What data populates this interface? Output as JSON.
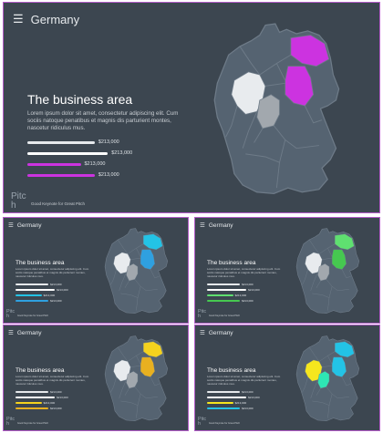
{
  "colors": {
    "background": "#3c4650",
    "frame": "#b35cc8",
    "map_base": "#556371",
    "map_border": "#6e7b88",
    "region_white": "#e8ebee",
    "region_gray": "#a2a8ae"
  },
  "slides": [
    {
      "header_title": "Germany",
      "menu_icon": "☰",
      "section_title": "The business area",
      "body": "Lorem ipsum dolor sit amet, consectetur adipiscing elit. Cum sociis natoque penatibus et magnis dis parturient montes, nascetur ridiculus mus.",
      "accent": "#cc33e0",
      "brand": "Pitc h",
      "tagline": "Good Keynote for Great Pitch",
      "bars": [
        {
          "value": "$213,000",
          "color": "#e6e9ec",
          "length": 0.82
        },
        {
          "value": "$213,000",
          "color": "#ffffff",
          "length": 0.98
        },
        {
          "value": "$213,000",
          "color": "#cc33e0",
          "length": 0.65
        },
        {
          "value": "$213,000",
          "color": "#cc33e0",
          "length": 0.82
        }
      ]
    },
    {
      "header_title": "Germany",
      "menu_icon": "☰",
      "section_title": "The business area",
      "body": "Lorem ipsum dolor sit amet, consectetur adipiscing elit. Cum sociis natoque penatibus et magnis dis parturient montes, nascetur ridiculus mus.",
      "accent": "#23c3e6",
      "brand": "Pitc h",
      "tagline": "Good Keynote for Great Pitch",
      "bars": [
        {
          "value": "$213,000",
          "color": "#e6e9ec",
          "length": 0.82
        },
        {
          "value": "$213,000",
          "color": "#ffffff",
          "length": 0.98
        },
        {
          "value": "$213,000",
          "color": "#23c3e6",
          "length": 0.65
        },
        {
          "value": "$213,000",
          "color": "#2fa0e0",
          "length": 0.82
        }
      ]
    },
    {
      "header_title": "Germany",
      "menu_icon": "☰",
      "section_title": "The business area",
      "body": "Lorem ipsum dolor sit amet, consectetur adipiscing elit. Cum sociis natoque penatibus et magnis dis parturient montes, nascetur ridiculus mus.",
      "accent": "#5fe070",
      "brand": "Pitc h",
      "tagline": "Good Keynote for Great Pitch",
      "bars": [
        {
          "value": "$213,000",
          "color": "#e6e9ec",
          "length": 0.82
        },
        {
          "value": "$213,000",
          "color": "#ffffff",
          "length": 0.98
        },
        {
          "value": "$213,000",
          "color": "#5fe070",
          "length": 0.65
        },
        {
          "value": "$213,000",
          "color": "#46c850",
          "length": 0.82
        }
      ]
    },
    {
      "header_title": "Germany",
      "menu_icon": "☰",
      "section_title": "The business area",
      "body": "Lorem ipsum dolor sit amet, consectetur adipiscing elit. Cum sociis natoque penatibus et magnis dis parturient montes, nascetur ridiculus mus.",
      "accent": "#f5d21e",
      "brand": "Pitc h",
      "tagline": "Good Keynote for Great Pitch",
      "bars": [
        {
          "value": "$213,000",
          "color": "#e6e9ec",
          "length": 0.82
        },
        {
          "value": "$213,000",
          "color": "#ffffff",
          "length": 0.98
        },
        {
          "value": "$213,000",
          "color": "#f5d21e",
          "length": 0.65
        },
        {
          "value": "$213,000",
          "color": "#e8b020",
          "length": 0.82
        }
      ]
    },
    {
      "header_title": "Germany",
      "menu_icon": "☰",
      "section_title": "The business area",
      "body": "Lorem ipsum dolor sit amet, consectetur adipiscing elit. Cum sociis natoque penatibus et magnis dis parturient montes, nascetur ridiculus mus.",
      "accent": "#23c3e6",
      "brand": "Pitc h",
      "tagline": "Good Keynote for Great Pitch",
      "bars": [
        {
          "value": "$213,000",
          "color": "#e6e9ec",
          "length": 0.82
        },
        {
          "value": "$213,000",
          "color": "#ffffff",
          "length": 0.98
        },
        {
          "value": "$213,000",
          "color": "#f5e61e",
          "length": 0.65
        },
        {
          "value": "$213,000",
          "color": "#23c3e6",
          "length": 0.82
        }
      ]
    }
  ],
  "regions": {
    "slide_0": {
      "north_east": "#cc33e0",
      "center_east": "#cc33e0",
      "west": "#e8ebee",
      "center": "#a2a8ae"
    },
    "slide_1": {
      "north_east": "#23c3e6",
      "center_east": "#2fa0e0",
      "west": "#e8ebee",
      "center": "#a2a8ae"
    },
    "slide_2": {
      "north_east": "#5fe070",
      "center_east": "#46c850",
      "west": "#e8ebee",
      "center": "#a2a8ae"
    },
    "slide_3": {
      "north_east": "#f5d21e",
      "center_east": "#e8b020",
      "west": "#e8ebee",
      "center": "#a2a8ae"
    },
    "slide_4": {
      "north_east": "#23c3e6",
      "center_east": "#23c3e6",
      "west": "#f5e61e",
      "center": "#2ee6b4"
    }
  }
}
